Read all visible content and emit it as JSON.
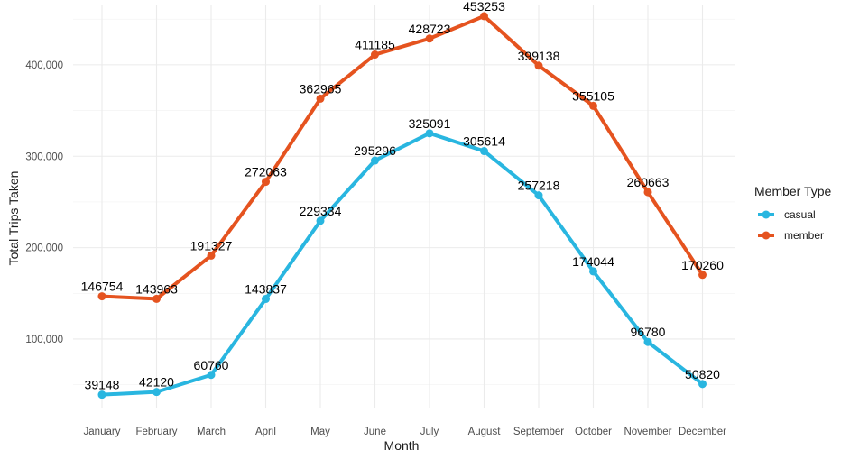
{
  "chart_data": {
    "type": "line",
    "title": "",
    "xlabel": "Month",
    "ylabel": "Total Trips Taken",
    "categories": [
      "January",
      "February",
      "March",
      "April",
      "May",
      "June",
      "July",
      "August",
      "September",
      "October",
      "November",
      "December"
    ],
    "ylim": [
      25000,
      465000
    ],
    "yticks": [
      100000,
      200000,
      300000,
      400000
    ],
    "ytick_labels": [
      "100,000",
      "200,000",
      "300,000",
      "400,000"
    ],
    "grid": true,
    "legend": {
      "title": "Member Type",
      "position": "right"
    },
    "series": [
      {
        "name": "casual",
        "color": "#29B6E0",
        "values": [
          39148,
          42120,
          60760,
          143837,
          229334,
          295296,
          325091,
          305614,
          257218,
          174044,
          96780,
          50820
        ]
      },
      {
        "name": "member",
        "color": "#E5531F",
        "values": [
          146754,
          143963,
          191327,
          272063,
          362965,
          411185,
          428723,
          453253,
          399138,
          355105,
          260663,
          170260
        ]
      }
    ]
  }
}
